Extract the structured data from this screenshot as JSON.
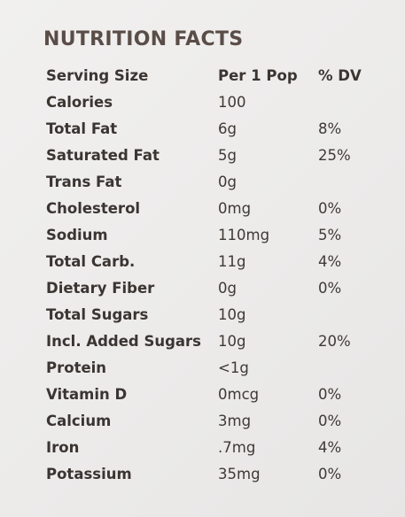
{
  "title": "NUTRITION FACTS",
  "header": {
    "label": "Serving Size",
    "amount": "Per 1 Pop",
    "dv": "% DV"
  },
  "rows": [
    {
      "label": "Calories",
      "amount": "100",
      "dv": ""
    },
    {
      "label": "Total Fat",
      "amount": "6g",
      "dv": "8%"
    },
    {
      "label": "Saturated Fat",
      "amount": "5g",
      "dv": "25%"
    },
    {
      "label": "Trans Fat",
      "amount": "0g",
      "dv": ""
    },
    {
      "label": "Cholesterol",
      "amount": "0mg",
      "dv": "0%"
    },
    {
      "label": "Sodium",
      "amount": "110mg",
      "dv": "5%"
    },
    {
      "label": "Total Carb.",
      "amount": "11g",
      "dv": "4%"
    },
    {
      "label": "Dietary Fiber",
      "amount": "0g",
      "dv": "0%"
    },
    {
      "label": "Total Sugars",
      "amount": "10g",
      "dv": ""
    },
    {
      "label": "Incl. Added Sugars",
      "amount": "10g",
      "dv": "20%"
    },
    {
      "label": "Protein",
      "amount": "<1g",
      "dv": ""
    },
    {
      "label": "Vitamin D",
      "amount": "0mcg",
      "dv": "0%"
    },
    {
      "label": "Calcium",
      "amount": "3mg",
      "dv": "0%"
    },
    {
      "label": "Iron",
      "amount": ".7mg",
      "dv": "4%"
    },
    {
      "label": "Potassium",
      "amount": "35mg",
      "dv": "0%"
    }
  ]
}
